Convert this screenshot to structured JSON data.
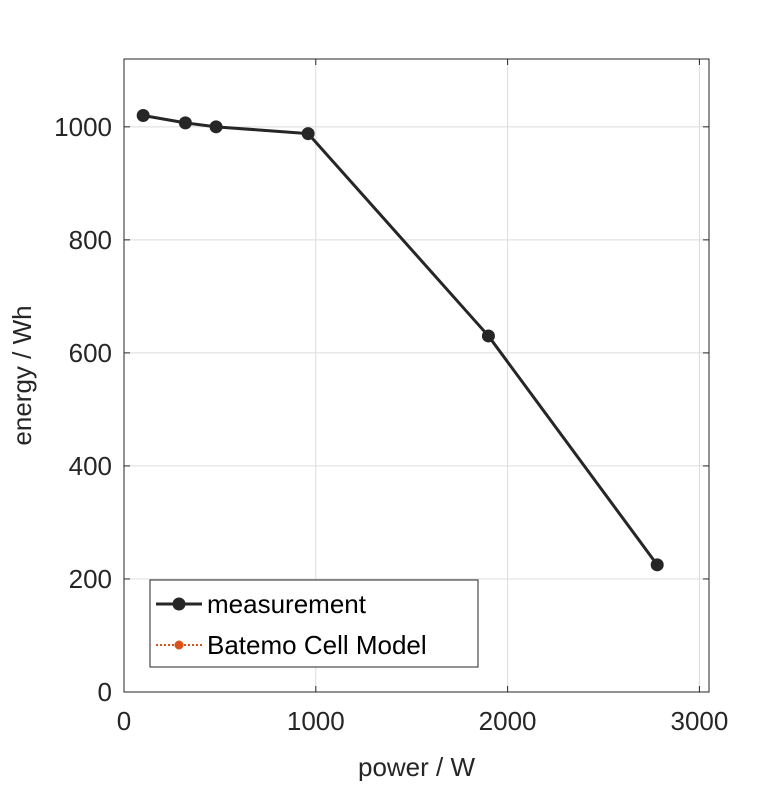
{
  "chart_data": {
    "type": "line",
    "xlabel": "power / W",
    "ylabel": "energy / Wh",
    "xlim": [
      0,
      3050
    ],
    "ylim": [
      0,
      1120
    ],
    "xticks": [
      0,
      1000,
      2000,
      3000
    ],
    "xtick_labels": [
      "0",
      "1000",
      "2000",
      "3000"
    ],
    "yticks": [
      0,
      200,
      400,
      600,
      800,
      1000
    ],
    "ytick_labels": [
      "0",
      "200",
      "400",
      "600",
      "800",
      "1000"
    ],
    "grid": true,
    "legend_position": "bottom-left",
    "series": [
      {
        "name": "measurement",
        "color": "#262626",
        "line_style": "solid",
        "marker": "circle",
        "x": [
          100,
          320,
          480,
          960,
          1900,
          2780
        ],
        "y": [
          1020,
          1007,
          1000,
          988,
          630,
          225
        ]
      },
      {
        "name": "Batemo Cell Model",
        "color": "#D95319",
        "line_style": "dotted",
        "marker": "circle",
        "x": [],
        "y": []
      }
    ]
  }
}
